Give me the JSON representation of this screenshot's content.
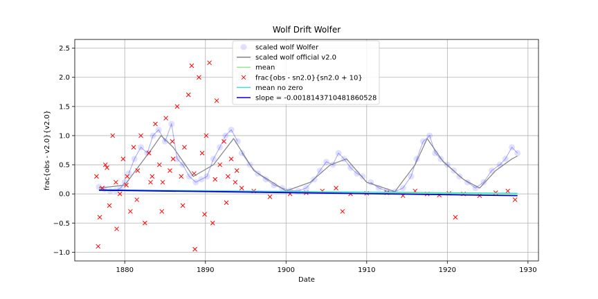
{
  "chart_data": {
    "type": "scatter",
    "title": "Wolf Drift Wolfer",
    "xlabel": "Date",
    "ylabel": "frac{obs - v2.0}{v2.0}",
    "xlim": [
      1873.8,
      1931.3
    ],
    "ylim": [
      -1.15,
      2.65
    ],
    "xticks": [
      1880,
      1890,
      1900,
      1910,
      1920,
      1930
    ],
    "yticks": [
      -1.0,
      -0.5,
      0.0,
      0.5,
      1.0,
      1.5,
      2.0,
      2.5
    ],
    "xtick_labels": [
      "1880",
      "1890",
      "1900",
      "1910",
      "1920",
      "1930"
    ],
    "ytick_labels": [
      "−1.0",
      "−0.5",
      "0.0",
      "0.5",
      "1.0",
      "1.5",
      "2.0",
      "2.5"
    ],
    "grid": true,
    "legend_position": "top-center",
    "colors": {
      "scaled_wolfer": "#0000ff",
      "official": "#808080",
      "mean": "#90ee90",
      "frac": "#ff0000",
      "mean_no_zero": "#40e0d0",
      "slope": "#0000cd"
    },
    "series": [
      {
        "name": "scaled wolf Wolfer",
        "marker": "circle",
        "segments": [
          {
            "x": [
              1876.8,
              1877.5,
              1878.2,
              1878.9,
              1879.5,
              1880.0
            ],
            "y": [
              0.12,
              0.08,
              0.05,
              0.06,
              0.1,
              0.2
            ]
          },
          {
            "x": [
              1880.5,
              1881.2,
              1882.0,
              1882.8,
              1883.5,
              1884.2,
              1885.0,
              1885.8,
              1886.5,
              1887.2,
              1888.0,
              1888.8,
              1889.5,
              1890.2,
              1891.0,
              1891.8,
              1892.5,
              1893.2,
              1894.0
            ],
            "y": [
              0.35,
              0.6,
              0.8,
              0.7,
              1.0,
              1.1,
              0.9,
              1.2,
              0.6,
              0.5,
              0.3,
              0.2,
              0.25,
              0.3,
              0.6,
              0.8,
              1.0,
              1.1,
              0.9
            ]
          },
          {
            "x": [
              1894.5,
              1895.5,
              1896.5,
              1897.5,
              1898.5,
              1899.5,
              1900.5,
              1901.5,
              1902.5,
              1903.5,
              1904.2,
              1905.0,
              1905.8,
              1906.5,
              1907.2,
              1908.0,
              1908.8,
              1909.5
            ],
            "y": [
              0.7,
              0.5,
              0.35,
              0.25,
              0.15,
              0.1,
              0.06,
              0.05,
              0.1,
              0.25,
              0.4,
              0.55,
              0.5,
              0.7,
              0.6,
              0.45,
              0.35,
              0.3
            ]
          },
          {
            "x": [
              1910.5,
              1911.5,
              1912.5,
              1913.5,
              1914.5,
              1915.5,
              1916.2,
              1917.0,
              1917.8,
              1918.5,
              1919.2,
              1920.0,
              1920.8,
              1921.5,
              1922.5,
              1923.5,
              1924.5,
              1925.5,
              1926.5,
              1927.2,
              1928.0,
              1928.7
            ],
            "y": [
              0.2,
              0.1,
              0.05,
              0.04,
              0.1,
              0.3,
              0.6,
              0.9,
              1.0,
              0.7,
              0.6,
              0.5,
              0.4,
              0.3,
              0.2,
              0.1,
              0.2,
              0.4,
              0.5,
              0.6,
              0.8,
              0.7
            ]
          }
        ]
      },
      {
        "name": "scaled wolf official v2.0",
        "marker": "line",
        "x": [
          1876.8,
          1880.0,
          1883.5,
          1884.5,
          1886.0,
          1888.5,
          1891.0,
          1893.5,
          1896.0,
          1900.0,
          1903.0,
          1905.5,
          1907.5,
          1910.0,
          1913.5,
          1916.0,
          1917.5,
          1919.5,
          1922.0,
          1924.0,
          1926.0,
          1928.0,
          1928.7
        ],
        "y": [
          0.1,
          0.15,
          0.8,
          1.0,
          0.8,
          0.3,
          0.5,
          0.95,
          0.4,
          0.05,
          0.2,
          0.5,
          0.6,
          0.2,
          0.04,
          0.5,
          0.95,
          0.55,
          0.25,
          0.1,
          0.4,
          0.6,
          0.65
        ]
      },
      {
        "name": "mean",
        "marker": "line",
        "x": [
          1876.8,
          1928.7
        ],
        "y": [
          0.06,
          0.0
        ]
      },
      {
        "name": "frac{obs - sn2.0}{sn2.0 + 10}",
        "marker": "x",
        "x": [
          1876.5,
          1876.9,
          1877.2,
          1877.6,
          1878.1,
          1878.5,
          1878.9,
          1879.4,
          1879.8,
          1880.3,
          1880.7,
          1881.1,
          1881.6,
          1882.0,
          1882.5,
          1883.0,
          1883.4,
          1883.8,
          1884.3,
          1884.7,
          1885.1,
          1885.6,
          1886.0,
          1886.5,
          1887.0,
          1887.4,
          1887.9,
          1888.3,
          1888.7,
          1889.2,
          1889.6,
          1890.1,
          1890.5,
          1890.9,
          1891.4,
          1891.8,
          1892.3,
          1892.8,
          1893.2,
          1893.7,
          1894.5,
          1896.0,
          1898.0,
          1900.5,
          1902.5,
          1904.5,
          1906.2,
          1907.0,
          1908.0,
          1910.0,
          1912.5,
          1914.5,
          1916.0,
          1917.5,
          1919.0,
          1920.2,
          1921.0,
          1922.0,
          1924.0,
          1926.0,
          1927.5,
          1928.4,
          1876.7,
          1877.8,
          1879.0,
          1880.2,
          1881.5,
          1883.2,
          1884.6,
          1885.9,
          1887.2,
          1888.6,
          1889.9,
          1891.2,
          1892.6,
          1893.9
        ],
        "y": [
          0.3,
          -0.4,
          0.1,
          0.5,
          -0.2,
          1.0,
          0.2,
          0.0,
          0.6,
          0.3,
          -0.3,
          0.8,
          0.4,
          1.0,
          -0.5,
          0.7,
          0.3,
          1.2,
          0.5,
          0.2,
          1.3,
          0.4,
          0.6,
          1.5,
          0.3,
          0.8,
          1.7,
          2.2,
          -0.95,
          2.0,
          0.7,
          1.0,
          2.25,
          -0.5,
          1.6,
          0.5,
          0.9,
          0.3,
          0.6,
          0.2,
          0.1,
          0.05,
          -0.05,
          0.0,
          0.02,
          0.05,
          0.1,
          -0.3,
          0.0,
          0.01,
          0.02,
          -0.03,
          0.05,
          0.0,
          -0.02,
          0.01,
          -0.4,
          0.0,
          -0.03,
          0.02,
          0.05,
          -0.1,
          -0.9,
          0.45,
          -0.6,
          0.15,
          -0.1,
          0.2,
          -0.3,
          0.9,
          -0.2,
          0.35,
          -0.35,
          0.25,
          -0.15,
          0.4
        ]
      },
      {
        "name": "mean no zero",
        "marker": "line",
        "x": [
          1876.8,
          1928.7
        ],
        "y": [
          0.07,
          0.01
        ]
      },
      {
        "name": "slope = -0.0018143710481860528",
        "marker": "line",
        "x": [
          1876.8,
          1928.7
        ],
        "y": [
          0.065,
          -0.029
        ]
      }
    ]
  }
}
